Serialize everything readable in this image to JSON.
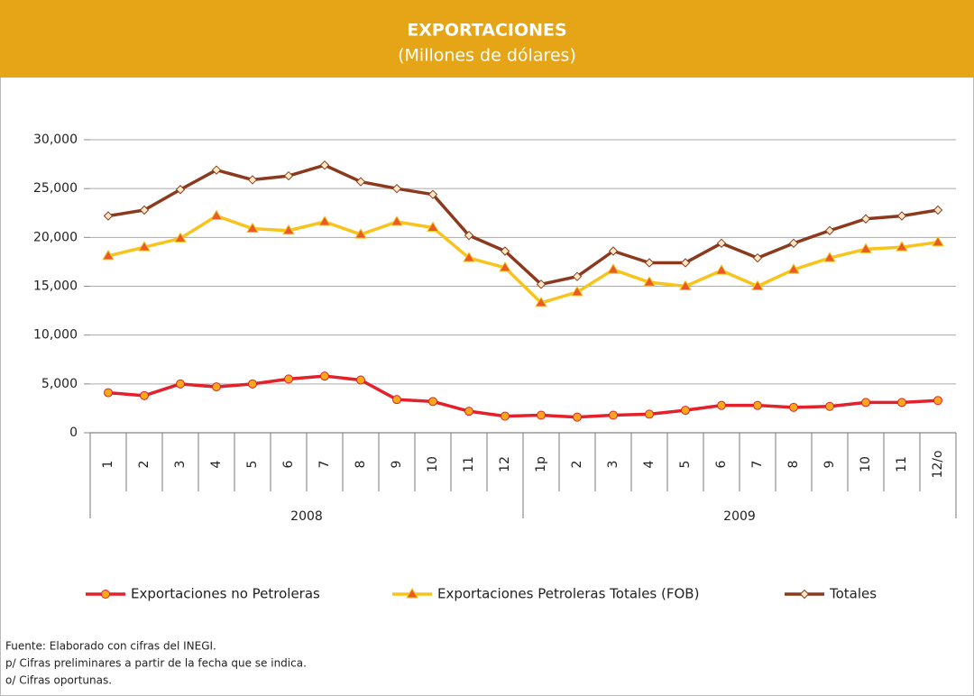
{
  "chart_data": {
    "type": "line",
    "title": "EXPORTACIONES",
    "subtitle": "(Millones de dólares)",
    "header_color": "#e5a516",
    "categories": [
      "1",
      "2",
      "3",
      "4",
      "5",
      "6",
      "7",
      "8",
      "9",
      "10",
      "11",
      "12",
      "1p",
      "2",
      "3",
      "4",
      "5",
      "6",
      "7",
      "8",
      "9",
      "10",
      "11",
      "12/o"
    ],
    "groups": [
      "2008",
      "2009"
    ],
    "series": [
      {
        "name": "Exportaciones no Petroleras",
        "color": "#e3212b",
        "marker": "circle",
        "marker_color": "#f7a81b",
        "values": [
          4100,
          3800,
          5000,
          4700,
          5000,
          5500,
          5800,
          5400,
          3400,
          3200,
          2200,
          1700,
          1800,
          1600,
          1800,
          1900,
          2300,
          2800,
          2800,
          2600,
          2700,
          3100,
          3100,
          3300
        ]
      },
      {
        "name": "Exportaciones Petroleras Totales (FOB)",
        "color": "#f8c41c",
        "marker": "triangle",
        "marker_color": "#ea5a24",
        "values": [
          18100,
          19000,
          19900,
          22200,
          20900,
          20700,
          21600,
          20300,
          21600,
          21000,
          17900,
          16900,
          13300,
          14400,
          16700,
          15400,
          15000,
          16600,
          15000,
          16700,
          17900,
          18800,
          19000,
          19500
        ]
      },
      {
        "name": "Totales",
        "color": "#8b3a1e",
        "marker": "diamond",
        "marker_color": "#fde9c5",
        "values": [
          22200,
          22800,
          24900,
          26900,
          25900,
          26300,
          27400,
          25700,
          25000,
          24400,
          20200,
          18600,
          15200,
          16000,
          18600,
          17400,
          17400,
          19400,
          17900,
          19400,
          20700,
          21900,
          22200,
          22800
        ]
      }
    ],
    "ylim": [
      0,
      30000
    ],
    "yticks": [
      0,
      {
        "value": 5000,
        "label": "5,000"
      },
      {
        "value": 10000,
        "label": "10,000"
      },
      {
        "value": 15000,
        "label": "15,000"
      },
      {
        "value": 20000,
        "label": "20,000"
      },
      {
        "value": 25000,
        "label": "25,000"
      },
      {
        "value": 30000,
        "label": "30,000"
      }
    ],
    "grid": true,
    "legend": "bottom",
    "notes": [
      "Fuente:  Elaborado con cifras del INEGI.",
      "p/ Cifras preliminares a partir de la fecha que se indica.",
      "o/ Cifras oportunas."
    ]
  }
}
